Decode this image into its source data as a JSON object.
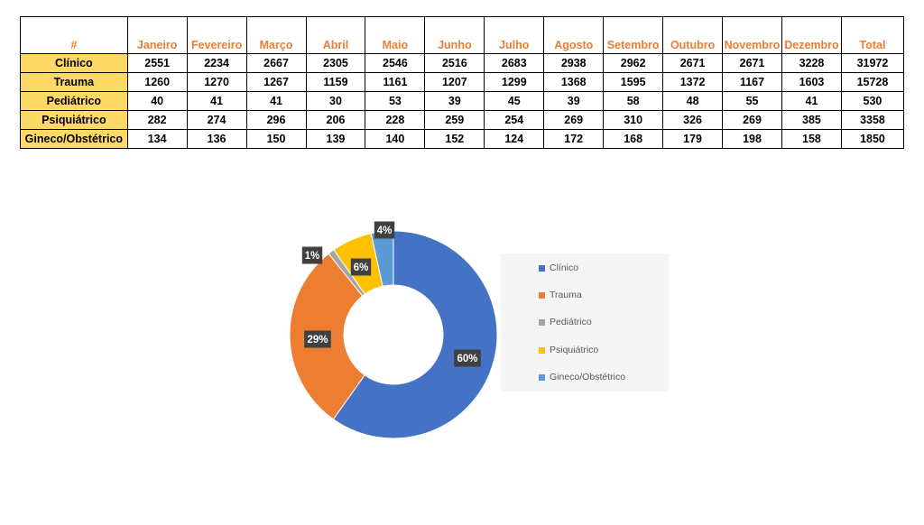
{
  "table": {
    "corner": "#",
    "months": [
      "Janeiro",
      "Fevereiro",
      "Março",
      "Abril",
      "Maio",
      "Junho",
      "Julho",
      "Agosto",
      "Setembro",
      "Outubro",
      "Novembro",
      "Dezembro"
    ],
    "total_header": "Total",
    "rows": [
      {
        "label": "Clínico",
        "values": [
          "2551",
          "2234",
          "2667",
          "2305",
          "2546",
          "2516",
          "2683",
          "2938",
          "2962",
          "2671",
          "2671",
          "3228"
        ],
        "total": "31972"
      },
      {
        "label": "Trauma",
        "values": [
          "1260",
          "1270",
          "1267",
          "1159",
          "1161",
          "1207",
          "1299",
          "1368",
          "1595",
          "1372",
          "1167",
          "1603"
        ],
        "total": "15728"
      },
      {
        "label": "Pediátrico",
        "values": [
          "40",
          "41",
          "41",
          "30",
          "53",
          "39",
          "45",
          "39",
          "58",
          "48",
          "55",
          "41"
        ],
        "total": "530"
      },
      {
        "label": "Psiquiátrico",
        "values": [
          "282",
          "274",
          "296",
          "206",
          "228",
          "259",
          "254",
          "269",
          "310",
          "326",
          "269",
          "385"
        ],
        "total": "3358"
      },
      {
        "label": "Gineco/Obstétrico",
        "values": [
          "134",
          "136",
          "150",
          "139",
          "140",
          "152",
          "124",
          "172",
          "168",
          "179",
          "198",
          "158"
        ],
        "total": "1850"
      }
    ]
  },
  "colors": {
    "header_text": "#ED7D31",
    "row_label_fill": "#FFD966",
    "label_box": "#404040"
  },
  "chart_data": {
    "type": "pie",
    "variant": "doughnut",
    "categories": [
      "Clínico",
      "Trauma",
      "Pediátrico",
      "Psiquiátrico",
      "Gineco/Obstétrico"
    ],
    "values": [
      31972,
      15728,
      530,
      3358,
      1850
    ],
    "labels": [
      "60%",
      "29%",
      "1%",
      "6%",
      "4%"
    ],
    "colors": [
      "#4472C4",
      "#ED7D31",
      "#A5A5A5",
      "#FFC000",
      "#5B9BD5"
    ],
    "legend": "right"
  }
}
